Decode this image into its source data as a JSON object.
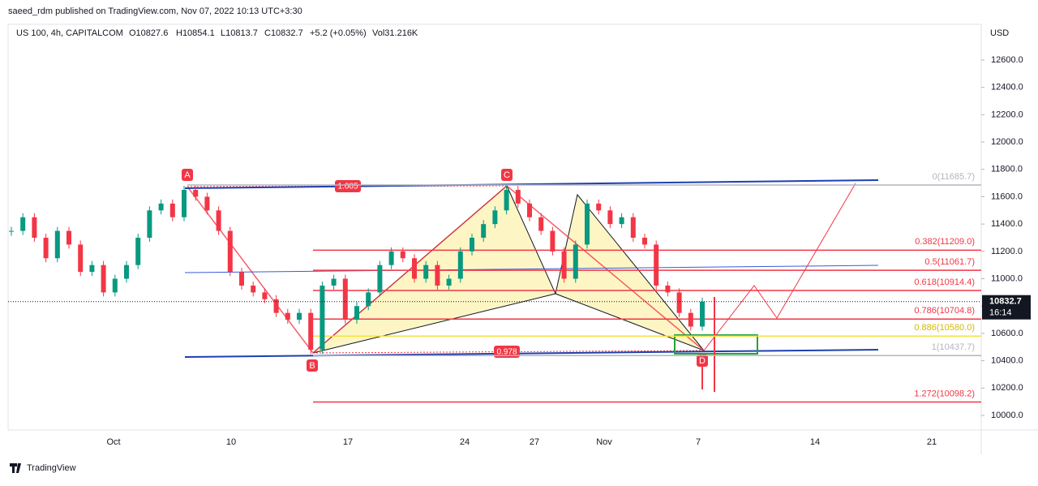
{
  "header": {
    "author_line": "saeed_rdm published on TradingView.com, Nov 07, 2022 10:13 UTC+3:30",
    "symbol": "US 100, 4h, CAPITALCOM",
    "open": "O10827.6",
    "high": "H10854.1",
    "low": "L10813.7",
    "close": "C10832.7",
    "change": "+5.2 (+0.05%)",
    "volume": "Vol31.216K"
  },
  "price_axis": {
    "currency": "USD",
    "range": [
      12800,
      9800
    ],
    "ticks": [
      {
        "value": 12600,
        "label": "12600.0"
      },
      {
        "value": 12400,
        "label": "12400.0"
      },
      {
        "value": 12200,
        "label": "12200.0"
      },
      {
        "value": 12000,
        "label": "12000.0"
      },
      {
        "value": 11800,
        "label": "11800.0"
      },
      {
        "value": 11600,
        "label": "11600.0"
      },
      {
        "value": 11400,
        "label": "11400.0"
      },
      {
        "value": 11200,
        "label": "11200.0"
      },
      {
        "value": 11000,
        "label": "11000.0"
      },
      {
        "value": 10800,
        "label": "10800.0"
      },
      {
        "value": 10600,
        "label": "10600.0"
      },
      {
        "value": 10400,
        "label": "10400.0"
      },
      {
        "value": 10200,
        "label": "10200.0"
      },
      {
        "value": 10000,
        "label": "10000.0"
      }
    ],
    "last_price": {
      "value": 10832.7,
      "label": "10832.7"
    },
    "countdown": "16:14"
  },
  "time_axis": {
    "labels": [
      "Oct",
      "10",
      "17",
      "24",
      "27",
      "Nov",
      "7",
      "14",
      "21"
    ]
  },
  "fib_levels": [
    {
      "label": "0(11685.7)",
      "value": 11685.7,
      "color": "#b2b5be"
    },
    {
      "label": "0.382(11209.0)",
      "value": 11209.0,
      "color": "#f23645"
    },
    {
      "label": "0.5(11061.7)",
      "value": 11061.7,
      "color": "#f23645"
    },
    {
      "label": "0.618(10914.4)",
      "value": 10914.4,
      "color": "#f23645"
    },
    {
      "label": "0.786(10704.8)",
      "value": 10704.8,
      "color": "#f23645"
    },
    {
      "label": "0.886(10580.0)",
      "value": 10580.0,
      "color": "#f7e03c"
    },
    {
      "label": "1(10437.7)",
      "value": 10437.7,
      "color": "#b2b5be"
    },
    {
      "label": "1.272(10098.2)",
      "value": 10098.2,
      "color": "#f23645"
    }
  ],
  "pattern": {
    "points": [
      "A",
      "B",
      "C",
      "D"
    ],
    "ratio_ac": "1.005",
    "ratio_bd": "0.978"
  },
  "closes": [
    11350,
    11450,
    11300,
    11150,
    11350,
    11250,
    11050,
    11100,
    10900,
    11000,
    11100,
    11300,
    11500,
    11550,
    11450,
    11650,
    11600,
    11500,
    11350,
    11050,
    10950,
    10900,
    10850,
    10750,
    10700,
    10750,
    10480,
    10950,
    11000,
    10700,
    10800,
    10900,
    11100,
    11200,
    11150,
    11000,
    11100,
    10950,
    11000,
    11200,
    11300,
    11400,
    11500,
    11650,
    11550,
    11450,
    11350,
    11200,
    11000,
    11250,
    11550,
    11500,
    11400,
    11450,
    11300,
    11250,
    10950,
    10900,
    10750,
    10650,
    10832.7
  ],
  "footer": {
    "brand": "TradingView"
  }
}
